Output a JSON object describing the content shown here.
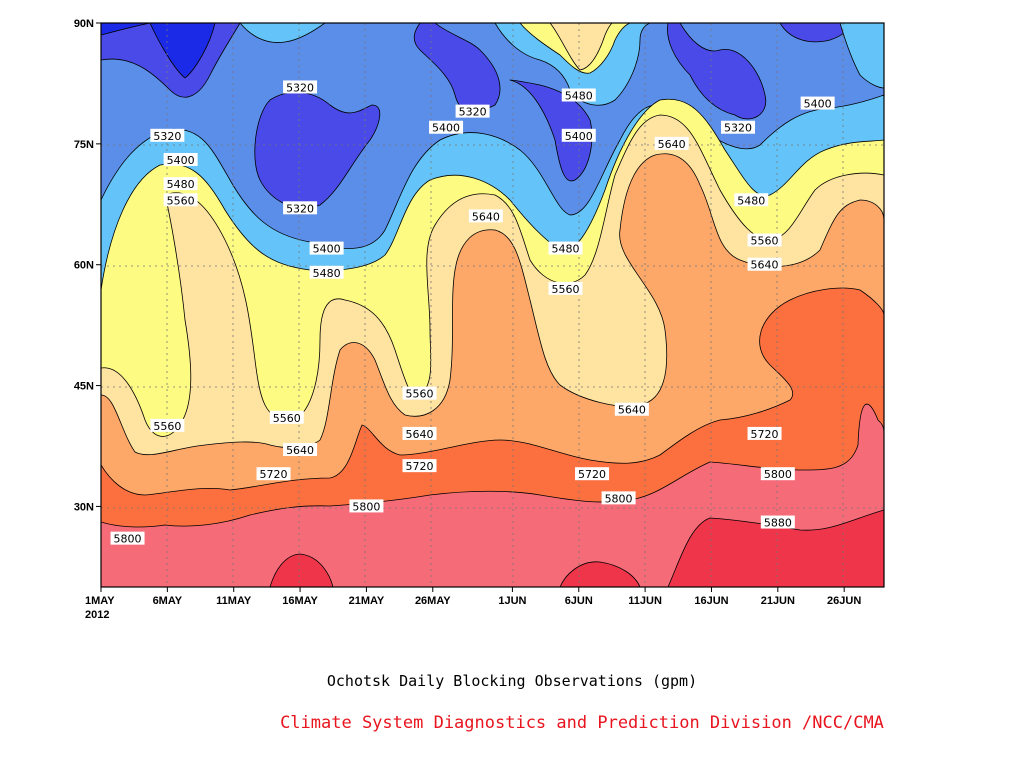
{
  "chart_data": {
    "type": "heatmap",
    "title": "Ochotsk Daily Blocking Observations (gpm)",
    "x_ticks": [
      "1MAY",
      "6MAY",
      "11MAY",
      "16MAY",
      "21MAY",
      "26MAY",
      "1JUN",
      "6JUN",
      "11JUN",
      "16JUN",
      "21JUN",
      "26JUN"
    ],
    "x_year_label": "2012",
    "y_ticks": [
      "90N",
      "75N",
      "60N",
      "45N",
      "30N"
    ],
    "xlim": [
      "2012-05-01",
      "2012-06-29"
    ],
    "ylim": [
      20,
      90
    ],
    "grid": true,
    "contour_levels": [
      5320,
      5400,
      5480,
      5560,
      5640,
      5720,
      5800,
      5880
    ],
    "contour_colors": [
      "#1a2ae6",
      "#4a4ae8",
      "#5a8ee8",
      "#64c3f8",
      "#fdfb82",
      "#fee3a1",
      "#fda769",
      "#fc7040",
      "#f56b78",
      "#ef3549"
    ],
    "contour_labels": [
      {
        "value": 5320,
        "date": "2012-05-06",
        "lat": 76
      },
      {
        "value": 5320,
        "date": "2012-05-16",
        "lat": 82
      },
      {
        "value": 5320,
        "date": "2012-05-16",
        "lat": 67
      },
      {
        "value": 5320,
        "date": "2012-05-29",
        "lat": 79
      },
      {
        "value": 5320,
        "date": "2012-06-18",
        "lat": 77
      },
      {
        "value": 5400,
        "date": "2012-05-07",
        "lat": 73
      },
      {
        "value": 5400,
        "date": "2012-05-18",
        "lat": 62
      },
      {
        "value": 5400,
        "date": "2012-05-27",
        "lat": 77
      },
      {
        "value": 5400,
        "date": "2012-06-06",
        "lat": 76
      },
      {
        "value": 5400,
        "date": "2012-06-24",
        "lat": 80
      },
      {
        "value": 5480,
        "date": "2012-05-07",
        "lat": 70
      },
      {
        "value": 5480,
        "date": "2012-05-18",
        "lat": 59
      },
      {
        "value": 5480,
        "date": "2012-06-06",
        "lat": 81
      },
      {
        "value": 5480,
        "date": "2012-06-05",
        "lat": 62
      },
      {
        "value": 5480,
        "date": "2012-06-19",
        "lat": 68
      },
      {
        "value": 5560,
        "date": "2012-05-07",
        "lat": 68
      },
      {
        "value": 5560,
        "date": "2012-05-06",
        "lat": 40
      },
      {
        "value": 5560,
        "date": "2012-05-15",
        "lat": 41
      },
      {
        "value": 5560,
        "date": "2012-05-25",
        "lat": 44
      },
      {
        "value": 5560,
        "date": "2012-06-05",
        "lat": 57
      },
      {
        "value": 5560,
        "date": "2012-06-20",
        "lat": 63
      },
      {
        "value": 5640,
        "date": "2012-05-16",
        "lat": 37
      },
      {
        "value": 5640,
        "date": "2012-05-25",
        "lat": 39
      },
      {
        "value": 5640,
        "date": "2012-05-30",
        "lat": 66
      },
      {
        "value": 5640,
        "date": "2012-06-10",
        "lat": 42
      },
      {
        "value": 5640,
        "date": "2012-06-13",
        "lat": 75
      },
      {
        "value": 5640,
        "date": "2012-06-20",
        "lat": 60
      },
      {
        "value": 5720,
        "date": "2012-05-14",
        "lat": 34
      },
      {
        "value": 5720,
        "date": "2012-05-25",
        "lat": 35
      },
      {
        "value": 5720,
        "date": "2012-06-07",
        "lat": 34
      },
      {
        "value": 5720,
        "date": "2012-06-20",
        "lat": 39
      },
      {
        "value": 5800,
        "date": "2012-05-03",
        "lat": 26
      },
      {
        "value": 5800,
        "date": "2012-05-21",
        "lat": 30
      },
      {
        "value": 5800,
        "date": "2012-06-09",
        "lat": 31
      },
      {
        "value": 5800,
        "date": "2012-06-21",
        "lat": 34
      },
      {
        "value": 5880,
        "date": "2012-06-21",
        "lat": 28
      }
    ]
  },
  "footer": {
    "credit": "Climate System Diagnostics and Prediction Division /NCC/CMA",
    "credit_color": "#e8141e"
  }
}
